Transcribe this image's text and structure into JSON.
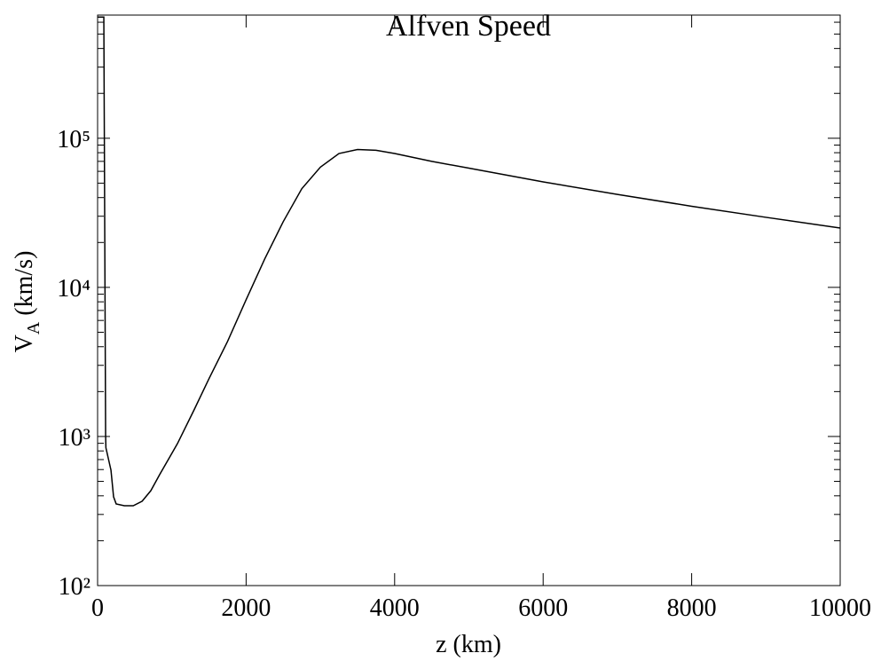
{
  "chart_data": {
    "type": "line",
    "title": "Alfven Speed",
    "xlabel": "z (km)",
    "ylabel_parts": [
      "V",
      "A",
      " (km/s)"
    ],
    "x": [
      0,
      84,
      108,
      112,
      180,
      215,
      250,
      360,
      480,
      600,
      717,
      836,
      1075,
      1300,
      1500,
      1750,
      2000,
      2250,
      2500,
      2750,
      3000,
      3250,
      3500,
      3750,
      4000,
      4500,
      5000,
      6000,
      7000,
      8000,
      9000,
      10000
    ],
    "series": [
      {
        "name": "V_A",
        "color": "#000000",
        "values": [
          650000,
          650000,
          1020,
          840,
          595,
          394,
          353,
          343,
          343,
          368,
          433,
          555,
          895,
          1510,
          2440,
          4340,
          8260,
          15500,
          27600,
          45900,
          64000,
          79000,
          84000,
          83000,
          79000,
          70000,
          63000,
          51000,
          42000,
          35000,
          29500,
          25000
        ]
      }
    ],
    "xlim": [
      0,
      10000
    ],
    "xticks": [
      0,
      2000,
      4000,
      6000,
      8000,
      10000
    ],
    "ylim": [
      100,
      670000
    ],
    "log_y": true,
    "yticks": [
      {
        "value": 100,
        "label": "10²"
      },
      {
        "value": 1000,
        "label": "10³"
      },
      {
        "value": 10000,
        "label": "10⁴"
      },
      {
        "value": 100000,
        "label": "10⁵"
      }
    ],
    "yminorticks": [
      200,
      300,
      400,
      500,
      600,
      700,
      800,
      900,
      2000,
      3000,
      4000,
      5000,
      6000,
      7000,
      8000,
      9000,
      20000,
      30000,
      40000,
      50000,
      60000,
      70000,
      80000,
      90000,
      200000,
      300000,
      400000,
      500000,
      600000
    ]
  }
}
